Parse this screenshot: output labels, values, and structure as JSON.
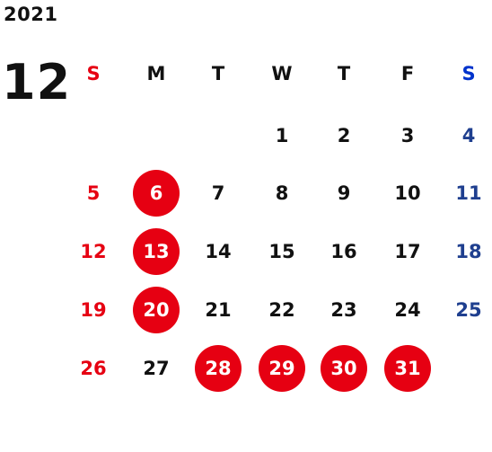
{
  "calendar": {
    "year": "2021",
    "month": "12",
    "colors": {
      "sunday": "#e60012",
      "saturday": "#1f3f8f",
      "saturday_header": "#0033cc",
      "weekday": "#111111",
      "holiday_circle": "#e60012",
      "holiday_text": "#ffffff"
    },
    "weekdays": [
      {
        "label": "S",
        "kind": "sun"
      },
      {
        "label": "M",
        "kind": "weekday"
      },
      {
        "label": "T",
        "kind": "weekday"
      },
      {
        "label": "W",
        "kind": "weekday"
      },
      {
        "label": "T",
        "kind": "weekday"
      },
      {
        "label": "F",
        "kind": "weekday"
      },
      {
        "label": "S",
        "kind": "sat"
      }
    ],
    "weeks": [
      [
        null,
        null,
        null,
        "1",
        "2",
        "3",
        "4"
      ],
      [
        "5",
        "6",
        "7",
        "8",
        "9",
        "10",
        "11"
      ],
      [
        "12",
        "13",
        "14",
        "15",
        "16",
        "17",
        "18"
      ],
      [
        "19",
        "20",
        "21",
        "22",
        "23",
        "24",
        "25"
      ],
      [
        "26",
        "27",
        "28",
        "29",
        "30",
        "31",
        null
      ]
    ],
    "highlighted_days": [
      "6",
      "13",
      "20",
      "28",
      "29",
      "30",
      "31"
    ]
  }
}
